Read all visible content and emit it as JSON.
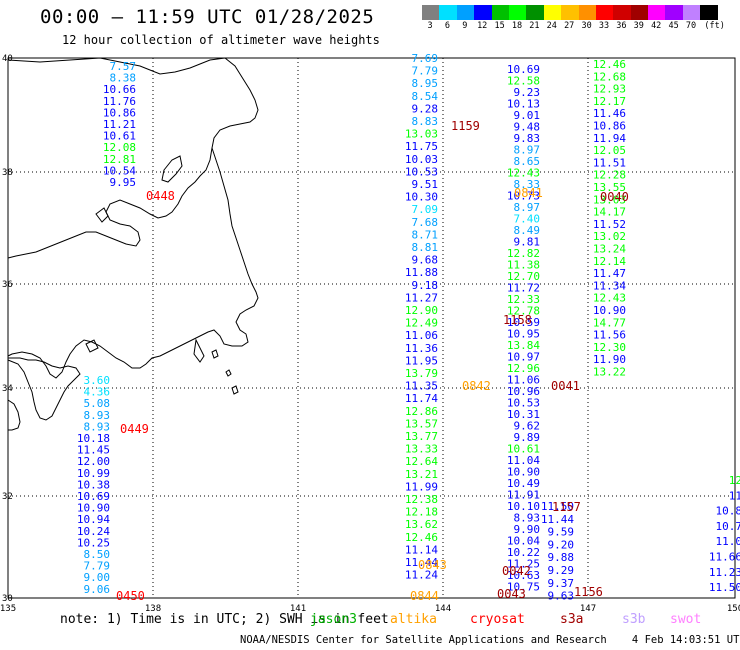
{
  "title": "00:00 – 11:59 UTC 01/28/2025",
  "subtitle": "12 hour collection of altimeter wave heights",
  "colorbar": {
    "unit": "(ft)",
    "colors": [
      "#808080",
      "#00e0ff",
      "#00a0ff",
      "#0000ff",
      "#00c000",
      "#00ff00",
      "#009000",
      "#ffff00",
      "#ffc000",
      "#ff9000",
      "#ff0000",
      "#d00000",
      "#a00000",
      "#ff00ff",
      "#a000ff",
      "#c080ff",
      "#000000"
    ],
    "labels": [
      "3",
      "6",
      "9",
      "12",
      "15",
      "18",
      "21",
      "24",
      "27",
      "30",
      "33",
      "36",
      "39",
      "42",
      "45",
      "70"
    ]
  },
  "axes": {
    "lon_labels": [
      "135",
      "138",
      "141",
      "144",
      "147",
      "150"
    ],
    "lat_labels": [
      "40",
      "38",
      "36",
      "34",
      "32",
      "30"
    ]
  },
  "footer": {
    "note": "note: 1) Time is in UTC; 2) SWH is in feet",
    "satellites": [
      {
        "name": "jason3",
        "color": "#00b000"
      },
      {
        "name": "altika",
        "color": "#ffa000"
      },
      {
        "name": "cryosat",
        "color": "#ff0000"
      },
      {
        "name": "s3a",
        "color": "#a00000"
      },
      {
        "name": "s3b",
        "color": "#c0a0ff"
      },
      {
        "name": "swot",
        "color": "#ff80ff"
      }
    ],
    "credit": "NOAA/NESDIS Center for Satellite Applications and Research    4 Feb 14:03:51 UTC 2025"
  },
  "tracks": [
    {
      "name": "track-west",
      "time": "0448",
      "time2": "0449",
      "time3": "0450",
      "tcolor": "#ff0000",
      "values": [
        "7.57",
        "8.38",
        "10.66",
        "11.76",
        "10.86",
        "11.21",
        "10.61",
        "12.08",
        "12.81",
        "10.54",
        "9.95",
        "3.60",
        "4.36",
        "5.08",
        "8.93",
        "8.93",
        "10.18",
        "11.45",
        "12.00",
        "10.99",
        "10.38",
        "10.69",
        "10.90",
        "10.94",
        "10.24",
        "10.25",
        "8.50",
        "7.79",
        "9.00",
        "9.06"
      ],
      "colors": [
        "#00a0ff",
        "#00a0ff",
        "#0000ff",
        "#0000ff",
        "#0000ff",
        "#0000ff",
        "#0000ff",
        "#00ff00",
        "#00ff00",
        "#0000ff",
        "#0000ff",
        "#00e0ff",
        "#00e0ff",
        "#00a0ff",
        "#00a0ff",
        "#00a0ff",
        "#0000ff",
        "#0000ff",
        "#0000ff",
        "#0000ff",
        "#0000ff",
        "#0000ff",
        "#0000ff",
        "#0000ff",
        "#0000ff",
        "#0000ff",
        "#00a0ff",
        "#00a0ff",
        "#00a0ff",
        "#00a0ff"
      ]
    },
    {
      "name": "track-1159",
      "time": "1159",
      "tcolor": "#a00000",
      "values": [
        "7.69",
        "7.79",
        "8.95",
        "8.54",
        "9.28",
        "8.83",
        "13.03",
        "11.75",
        "10.03",
        "10.53",
        "9.51",
        "10.30",
        "7.09",
        "7.68",
        "8.71",
        "8.81",
        "9.68",
        "11.88",
        "9.18",
        "11.27",
        "12.90",
        "12.49",
        "11.06",
        "11.36",
        "11.95",
        "13.79",
        "11.35",
        "11.74",
        "12.86",
        "13.57",
        "13.77",
        "13.33",
        "12.64",
        "13.21",
        "11.99",
        "12.38",
        "12.18",
        "13.62",
        "12.46",
        "11.14",
        "11.44",
        "11.24"
      ],
      "colors": [
        "#00a0ff",
        "#00a0ff",
        "#00a0ff",
        "#00a0ff",
        "#0000ff",
        "#00a0ff",
        "#00ff00",
        "#0000ff",
        "#0000ff",
        "#0000ff",
        "#0000ff",
        "#0000ff",
        "#00e0ff",
        "#00a0ff",
        "#00a0ff",
        "#00a0ff",
        "#0000ff",
        "#0000ff",
        "#0000ff",
        "#0000ff",
        "#00ff00",
        "#00ff00",
        "#0000ff",
        "#0000ff",
        "#0000ff",
        "#00ff00",
        "#0000ff",
        "#0000ff",
        "#00ff00",
        "#00ff00",
        "#00ff00",
        "#00ff00",
        "#00ff00",
        "#00ff00",
        "#0000ff",
        "#00ff00",
        "#00ff00",
        "#00ff00",
        "#00ff00",
        "#0000ff",
        "#0000ff",
        "#0000ff"
      ]
    },
    {
      "name": "track-0841",
      "time": "0841",
      "time2": "0843",
      "time3": "0844",
      "tcolor": "#ffa000",
      "values": [
        "10.69",
        "12.58",
        "9.23",
        "10.13",
        "9.01",
        "9.48",
        "9.83",
        "8.97",
        "8.65",
        "12.43",
        "8.33",
        "10.73",
        "8.97",
        "7.40",
        "8.49",
        "9.81",
        "12.82",
        "11.38",
        "12.70",
        "11.72",
        "12.33",
        "12.78",
        "10.59",
        "10.95",
        "13.84",
        "10.97",
        "12.96",
        "11.06",
        "10.96",
        "10.53",
        "10.31",
        "9.62",
        "9.89",
        "10.61",
        "11.04",
        "10.90",
        "10.49",
        "11.91",
        "10.10",
        "8.93",
        "9.90",
        "10.04",
        "10.22",
        "11.25",
        "10.63",
        "10.75"
      ],
      "colors": [
        "#0000ff",
        "#00ff00",
        "#0000ff",
        "#0000ff",
        "#0000ff",
        "#0000ff",
        "#0000ff",
        "#00a0ff",
        "#00a0ff",
        "#00ff00",
        "#00a0ff",
        "#0000ff",
        "#00a0ff",
        "#00e0ff",
        "#00a0ff",
        "#0000ff",
        "#00ff00",
        "#00ff00",
        "#00ff00",
        "#0000ff",
        "#00ff00",
        "#00ff00",
        "#0000ff",
        "#0000ff",
        "#00ff00",
        "#0000ff",
        "#00ff00",
        "#0000ff",
        "#0000ff",
        "#0000ff",
        "#0000ff",
        "#0000ff",
        "#0000ff",
        "#00ff00",
        "#0000ff",
        "#0000ff",
        "#0000ff",
        "#0000ff",
        "#0000ff",
        "#0000ff",
        "#0000ff",
        "#0000ff",
        "#0000ff",
        "#0000ff",
        "#0000ff",
        "#0000ff"
      ]
    },
    {
      "name": "track-0040",
      "time": "0040",
      "time2": "1158",
      "time3": "0041",
      "tcolor": "#a00000",
      "values": [
        "12.46",
        "12.68",
        "12.93",
        "12.17",
        "11.46",
        "10.86",
        "11.94",
        "12.05",
        "11.51",
        "12.28",
        "13.55",
        "13.03",
        "14.17",
        "11.52",
        "13.02",
        "13.24",
        "12.14",
        "11.47",
        "11.34",
        "12.43",
        "10.90",
        "14.77",
        "11.56",
        "12.30",
        "11.90",
        "13.22"
      ],
      "colors": [
        "#00ff00",
        "#00ff00",
        "#00ff00",
        "#00ff00",
        "#0000ff",
        "#0000ff",
        "#0000ff",
        "#00ff00",
        "#0000ff",
        "#00ff00",
        "#00ff00",
        "#00ff00",
        "#00ff00",
        "#0000ff",
        "#00ff00",
        "#00ff00",
        "#00ff00",
        "#0000ff",
        "#0000ff",
        "#00ff00",
        "#0000ff",
        "#00ff00",
        "#0000ff",
        "#00ff00",
        "#0000ff",
        "#00ff00"
      ]
    },
    {
      "name": "track-1157",
      "time": "1157",
      "time2": "0042",
      "time3": "0043",
      "time4": "1156",
      "tcolor": "#a00000",
      "values": [
        "11.50",
        "11.44",
        "9.59",
        "9.20",
        "9.88",
        "9.29",
        "9.37",
        "9.63"
      ],
      "colors": [
        "#0000ff",
        "#0000ff",
        "#0000ff",
        "#0000ff",
        "#0000ff",
        "#0000ff",
        "#0000ff",
        "#0000ff"
      ]
    },
    {
      "name": "track-east",
      "values": [
        "12",
        "11",
        "10.8",
        "10.7",
        "11.0",
        "11.66",
        "11.23",
        "11.50"
      ],
      "colors": [
        "#00ff00",
        "#0000ff",
        "#0000ff",
        "#0000ff",
        "#0000ff",
        "#0000ff",
        "#0000ff",
        "#0000ff"
      ]
    }
  ]
}
